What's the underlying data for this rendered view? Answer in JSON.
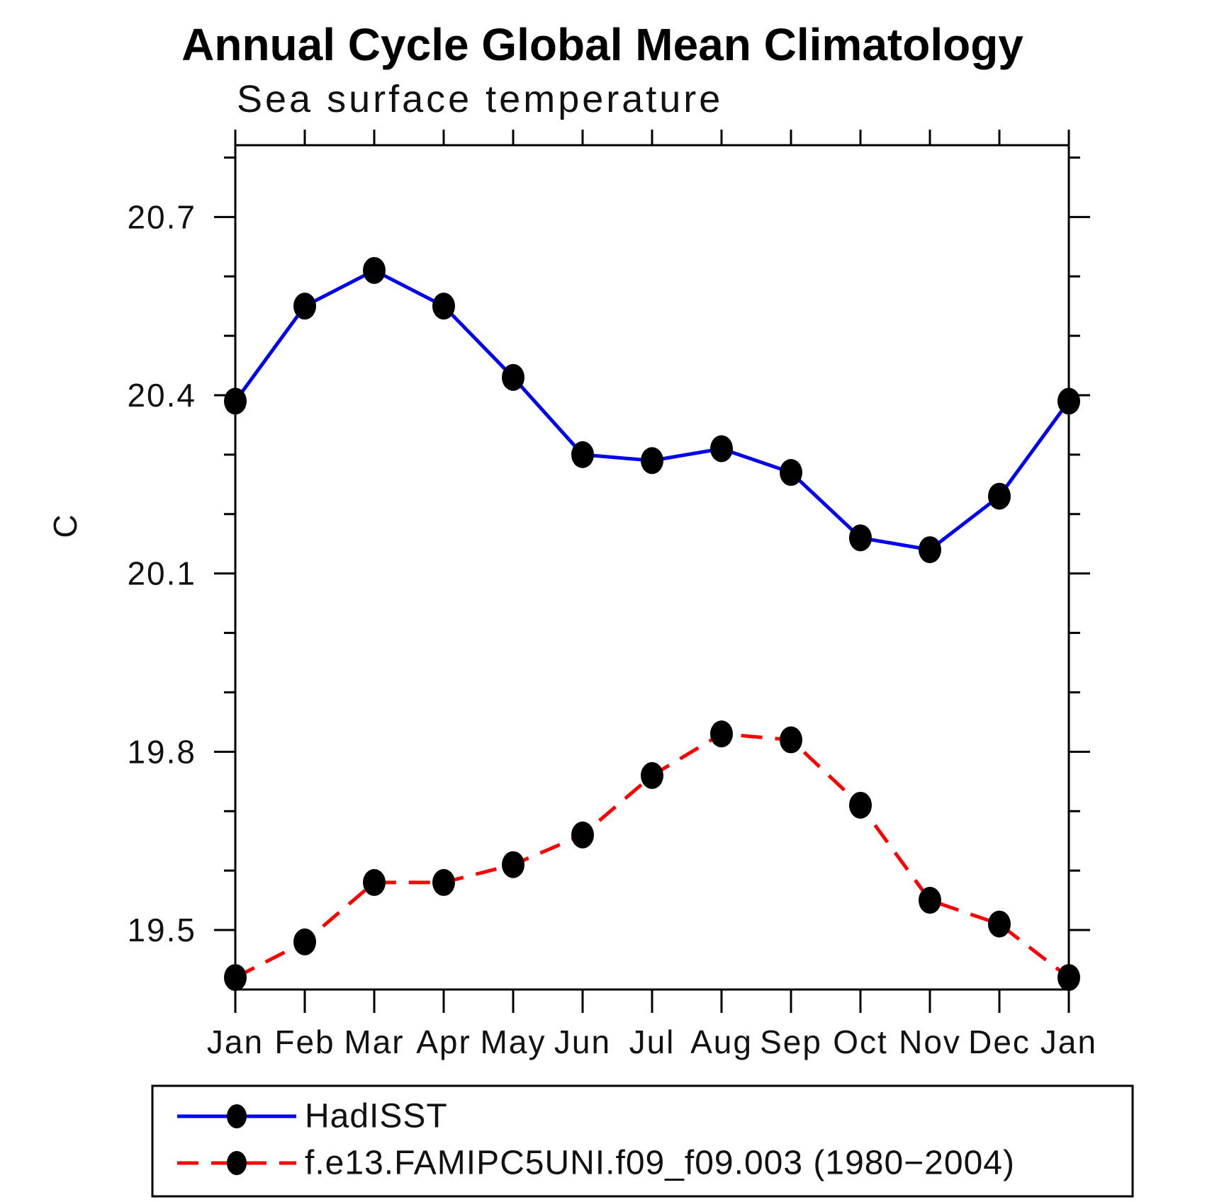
{
  "page": {
    "background": "#ffffff",
    "axis_color": "#000000",
    "marker_color": "#000000"
  },
  "chart_data": {
    "type": "line",
    "title": "Annual Cycle Global Mean Climatology",
    "subtitle": "Sea surface temperature",
    "xlabel": "",
    "ylabel": "C",
    "x_categories": [
      "Jan",
      "Feb",
      "Mar",
      "Apr",
      "May",
      "Jun",
      "Jul",
      "Aug",
      "Sep",
      "Oct",
      "Nov",
      "Dec",
      "Jan"
    ],
    "y_major_ticks": [
      19.5,
      19.8,
      20.1,
      20.4,
      20.7
    ],
    "y_major_tick_labels": [
      "19.5",
      "19.8",
      "20.1",
      "20.4",
      "20.7"
    ],
    "y_minor_step": 0.1,
    "ylim": [
      19.4,
      20.82
    ],
    "grid": false,
    "legend_position": "below-plot",
    "series": [
      {
        "name": "HadISST",
        "color": "#0000ee",
        "line_style": "solid",
        "marker": "filled-dot",
        "values": [
          20.39,
          20.55,
          20.61,
          20.55,
          20.43,
          20.3,
          20.29,
          20.31,
          20.27,
          20.16,
          20.14,
          20.23,
          20.39
        ]
      },
      {
        "name": "f.e13.FAMIPC5UNI.f09_f09.003 (1980−2004)",
        "color": "#ff0000",
        "line_style": "dashed",
        "marker": "filled-dot",
        "values": [
          19.42,
          19.48,
          19.58,
          19.58,
          19.61,
          19.66,
          19.76,
          19.83,
          19.82,
          19.71,
          19.55,
          19.51,
          19.42
        ]
      }
    ]
  }
}
